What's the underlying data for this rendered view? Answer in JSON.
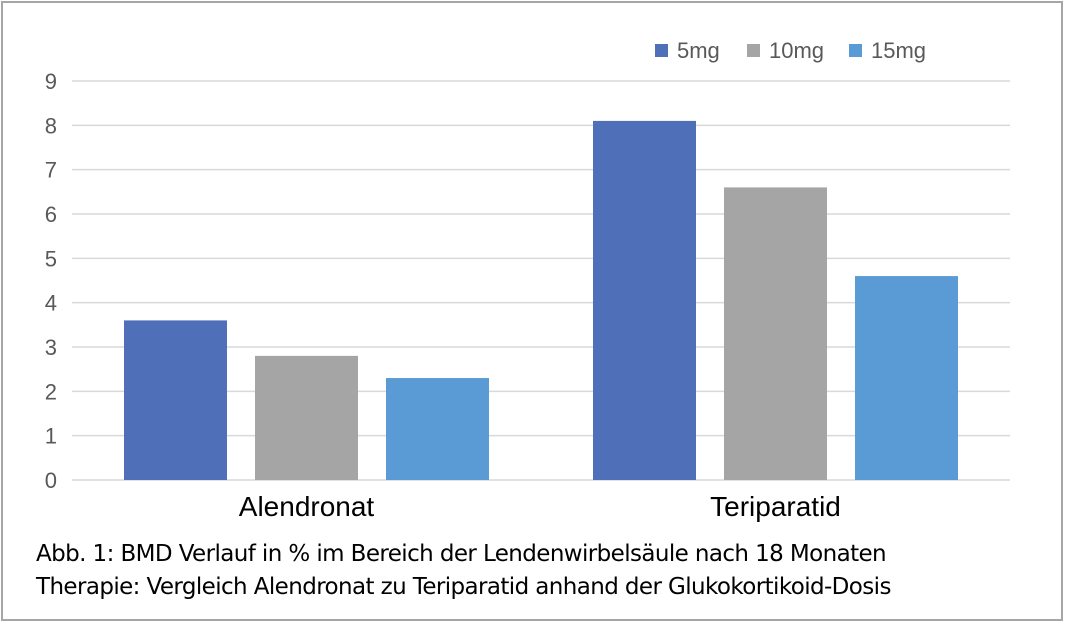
{
  "chart_data": {
    "type": "bar",
    "categories": [
      "Alendronat",
      "Teriparatid"
    ],
    "series": [
      {
        "name": "5mg",
        "values": [
          3.6,
          8.1
        ],
        "color": "#4f6fb9"
      },
      {
        "name": "10mg",
        "values": [
          2.8,
          6.6
        ],
        "color": "#a5a5a5"
      },
      {
        "name": "15mg",
        "values": [
          2.3,
          4.6
        ],
        "color": "#5b9bd5"
      }
    ],
    "ylim": [
      0,
      9
    ],
    "yticks": [
      "0",
      "1",
      "2",
      "3",
      "4",
      "5",
      "6",
      "7",
      "8",
      "9"
    ],
    "grid": true,
    "legend_position": "top-right",
    "gridline_color": "#d9d9d9"
  },
  "caption": {
    "line1": "Abb. 1: BMD Verlauf in % im Bereich der Lendenwirbelsäule nach 18 Monaten",
    "line2": "Therapie: Vergleich Alendronat zu Teriparatid anhand der Glukokortikoid-Dosis"
  }
}
